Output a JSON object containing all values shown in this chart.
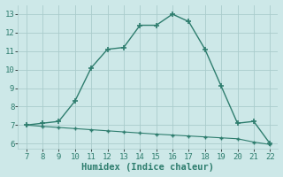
{
  "xlabel": "Humidex (Indice chaleur)",
  "x_main": [
    7,
    8,
    9,
    10,
    11,
    12,
    13,
    14,
    15,
    16,
    17,
    18,
    19,
    20,
    21,
    22
  ],
  "y_main": [
    7.0,
    7.1,
    7.2,
    8.3,
    10.1,
    11.1,
    11.2,
    12.4,
    12.4,
    13.0,
    12.6,
    11.1,
    9.1,
    7.1,
    7.2,
    6.0
  ],
  "x_secondary": [
    7,
    8,
    9,
    10,
    11,
    12,
    13,
    14,
    15,
    16,
    17,
    18,
    19,
    20,
    21,
    22
  ],
  "y_secondary": [
    7.0,
    6.93,
    6.87,
    6.81,
    6.75,
    6.69,
    6.63,
    6.57,
    6.51,
    6.46,
    6.41,
    6.36,
    6.31,
    6.26,
    6.08,
    5.95
  ],
  "line_color": "#2e7d6e",
  "bg_color": "#cde8e8",
  "grid_color": "#aacccc",
  "xlim": [
    6.5,
    22.5
  ],
  "ylim": [
    5.7,
    13.5
  ],
  "xticks": [
    7,
    8,
    9,
    10,
    11,
    12,
    13,
    14,
    15,
    16,
    17,
    18,
    19,
    20,
    21,
    22
  ],
  "yticks": [
    6,
    7,
    8,
    9,
    10,
    11,
    12,
    13
  ],
  "tick_fontsize": 6.5,
  "xlabel_fontsize": 7.5
}
